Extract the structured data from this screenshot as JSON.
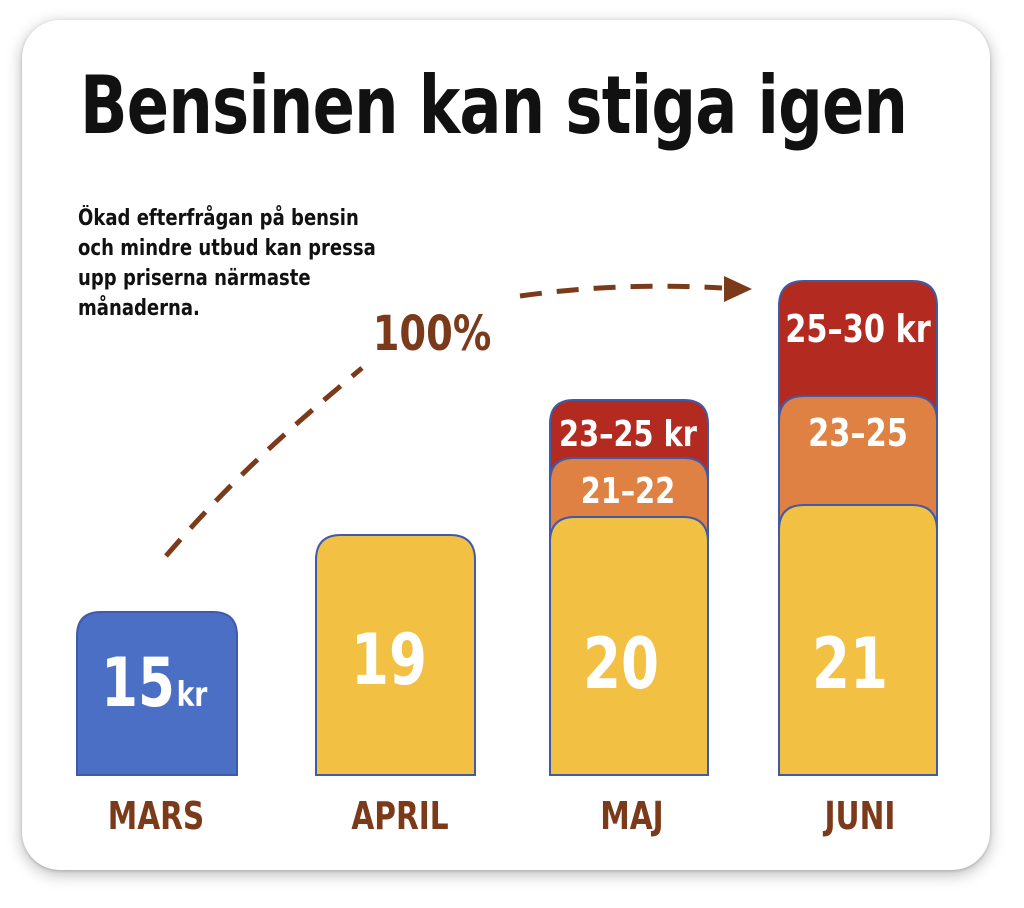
{
  "title": "Bensinen kan stiga igen",
  "subtitle": "Ökad efterfrågan på bensin\noch mindre utbud kan pressa\nupp priserna närmaste\nmånaderna.",
  "annotation": "100%",
  "colors": {
    "mars": "#4a6fc4",
    "base": "#f2c043",
    "mid": "#df8143",
    "high": "#b22a20",
    "border": "#3f5aa8",
    "label": "#7b3b1a",
    "arrow": "#7b3b1a"
  },
  "chart_data": {
    "type": "bar",
    "title": "Bensinen kan stiga igen",
    "unit": "kr",
    "categories": [
      "MARS",
      "APRIL",
      "MAJ",
      "JUNI"
    ],
    "values": [
      15,
      19,
      20,
      21
    ],
    "value_labels": [
      "15",
      "19",
      "20",
      "21"
    ],
    "ranges": [
      {
        "category": "MAJ",
        "label": "21–22",
        "min": 21,
        "max": 22
      },
      {
        "category": "MAJ",
        "label": "23–25 kr",
        "min": 23,
        "max": 25
      },
      {
        "category": "JUNI",
        "label": "23–25",
        "min": 23,
        "max": 25
      },
      {
        "category": "JUNI",
        "label": "25–30 kr",
        "min": 25,
        "max": 30
      }
    ],
    "annotation": "100%"
  }
}
